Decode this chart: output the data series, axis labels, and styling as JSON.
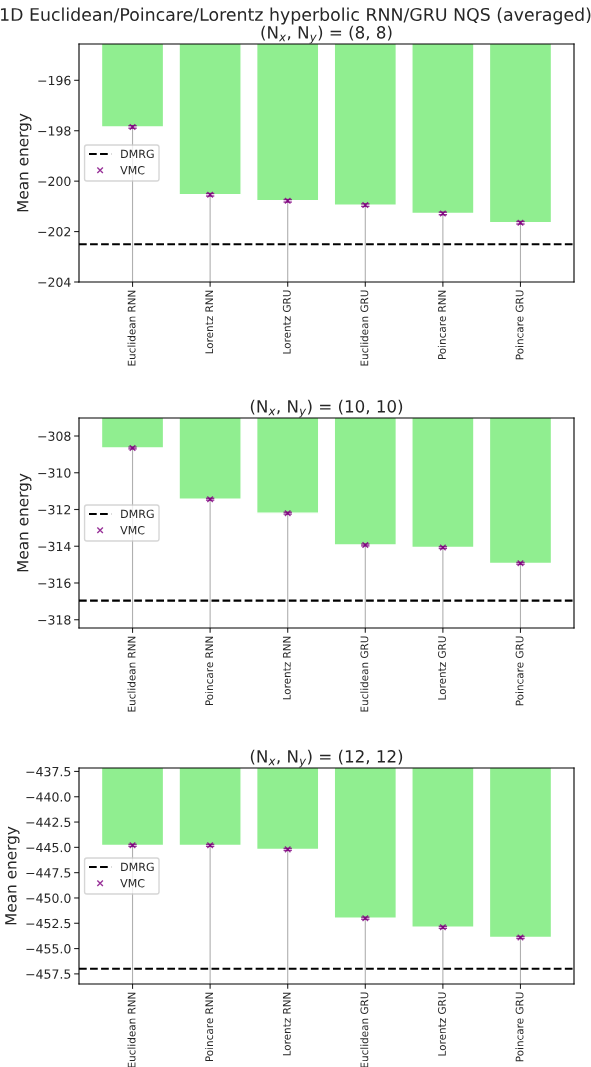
{
  "chart_data": [
    {
      "type": "bar",
      "title": "1D Euclidean/Poincare/Lorentz hyperbolic RNN/GRU NQS (averaged)",
      "subtitle": "(N$_{x}$, N$_{y}$) = (8, 8)",
      "ylabel": "Mean energy",
      "categories": [
        "Euclidean RNN",
        "Lorentz RNN",
        "Lorentz GRU",
        "Euclidean GRU",
        "Poincare RNN",
        "Poincare GRU"
      ],
      "series": [
        {
          "type": "bar",
          "color": "#90ee90",
          "values": [
            -197.85,
            -200.54,
            -200.78,
            -200.95,
            -201.28,
            -201.65
          ]
        },
        {
          "type": "scatter",
          "name": "VMC",
          "color": "#800080",
          "marker": "cross",
          "values": [
            -197.85,
            -200.54,
            -200.78,
            -200.95,
            -201.28,
            -201.65
          ],
          "errors": [
            0.05,
            0.05,
            0.05,
            0.05,
            0.05,
            0.05
          ]
        }
      ],
      "ref_lines": [
        {
          "axis": "y",
          "value": -202.5,
          "label": "DMRG",
          "color": "#000000",
          "line_style": "dashed"
        }
      ],
      "ylim": [
        -204,
        -194.56
      ],
      "yticks": [
        -204,
        -202,
        -200,
        -198,
        -196
      ],
      "grid": "x",
      "legend": "left"
    },
    {
      "type": "bar",
      "subtitle": "(N$_{x}$, N$_{y}$) = (10, 10)",
      "ylabel": "Mean energy",
      "categories": [
        "Euclidean RNN",
        "Poincare RNN",
        "Lorentz RNN",
        "Euclidean GRU",
        "Lorentz GRU",
        "Poincare GRU"
      ],
      "series": [
        {
          "type": "bar",
          "color": "#90ee90",
          "values": [
            -308.65,
            -311.44,
            -312.2,
            -313.93,
            -314.07,
            -314.93
          ]
        },
        {
          "type": "scatter",
          "name": "VMC",
          "color": "#800080",
          "marker": "cross",
          "values": [
            -308.65,
            -311.44,
            -312.2,
            -313.93,
            -314.07,
            -314.93
          ],
          "errors": [
            0.05,
            0.05,
            0.05,
            0.05,
            0.05,
            0.05
          ]
        }
      ],
      "ref_lines": [
        {
          "axis": "y",
          "value": -316.96,
          "label": "DMRG",
          "color": "#000000",
          "line_style": "dashed"
        }
      ],
      "ylim": [
        -318.45,
        -307.02
      ],
      "yticks": [
        -318,
        -316,
        -314,
        -312,
        -310,
        -308
      ],
      "grid": "x",
      "legend": "left"
    },
    {
      "type": "bar",
      "subtitle": "(N$_{x}$, N$_{y}$) = (12, 12)",
      "ylabel": "Mean energy",
      "categories": [
        "Euclidean RNN",
        "Poincare RNN",
        "Lorentz RNN",
        "Euclidean GRU",
        "Lorentz GRU",
        "Poincare GRU"
      ],
      "series": [
        {
          "type": "bar",
          "color": "#90ee90",
          "values": [
            -444.8,
            -444.8,
            -445.2,
            -452.0,
            -452.9,
            -453.9
          ]
        },
        {
          "type": "scatter",
          "name": "VMC",
          "color": "#800080",
          "marker": "cross",
          "values": [
            -444.8,
            -444.8,
            -445.2,
            -452.0,
            -452.9,
            -453.9
          ],
          "errors": [
            0.1,
            0.1,
            0.1,
            0.1,
            0.1,
            0.1
          ]
        }
      ],
      "ref_lines": [
        {
          "axis": "y",
          "value": -457.0,
          "label": "DMRG",
          "color": "#000000",
          "line_style": "dashed"
        }
      ],
      "ylim": [
        -458.5,
        -437.16
      ],
      "yticks": [
        {
          "value": -457.5,
          "label": "−457.5"
        },
        {
          "value": -455,
          "label": "−455.0"
        },
        {
          "value": -452.5,
          "label": "−452.5"
        },
        {
          "value": -450,
          "label": "−450.0"
        },
        {
          "value": -447.5,
          "label": "−447.5"
        },
        {
          "value": -445,
          "label": "−445.0"
        },
        {
          "value": -442.5,
          "label": "−442.5"
        },
        {
          "value": -440,
          "label": "−440.0"
        },
        {
          "value": -437.5,
          "label": "−437.5"
        }
      ],
      "grid": "x",
      "legend": "left"
    }
  ]
}
